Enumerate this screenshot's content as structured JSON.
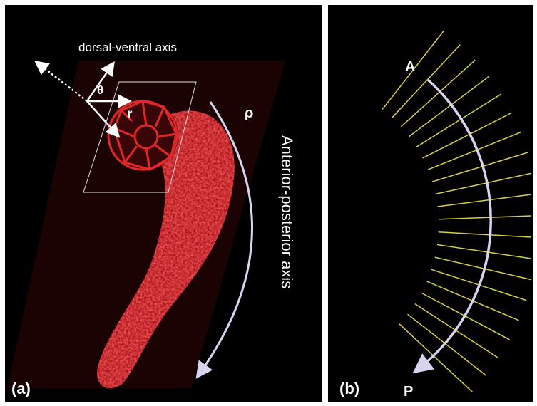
{
  "panel_a": {
    "label": "(a)",
    "axis_dv": "dorsal-ventral axis",
    "theta": "θ",
    "r": "r",
    "rho": "ρ",
    "axis_ap": "Anterior-posterior axis"
  },
  "panel_b": {
    "label": "(b)",
    "start": "A",
    "end": "P"
  }
}
